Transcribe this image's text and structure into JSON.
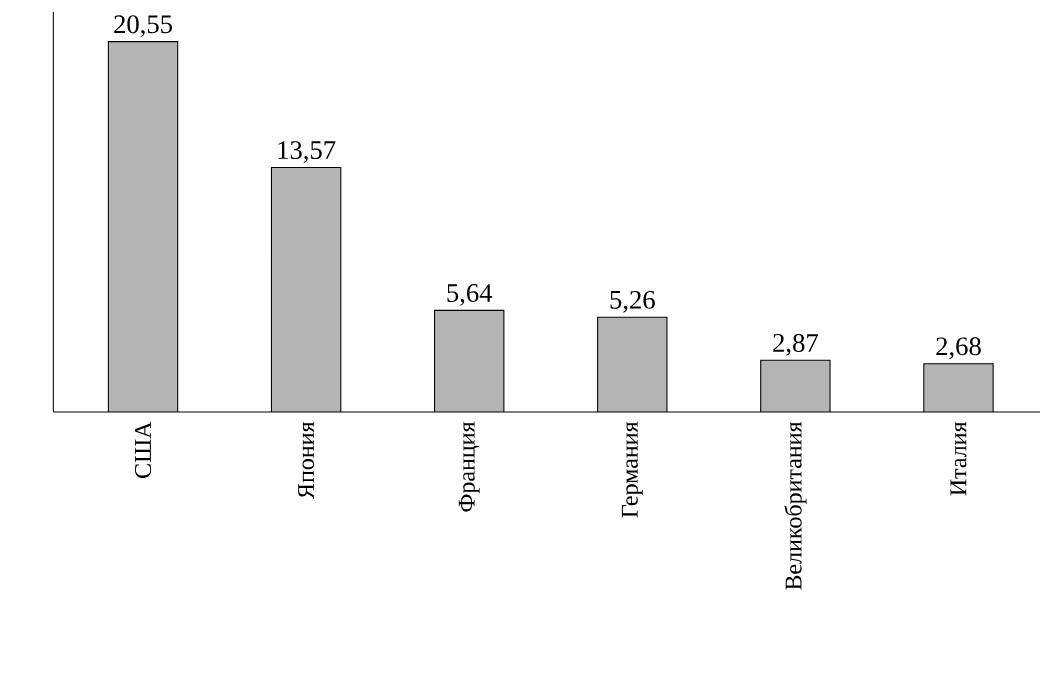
{
  "chart_data": {
    "type": "bar",
    "categories": [
      "США",
      "Япония",
      "Франция",
      "Германия",
      "Великобритания",
      "Италия"
    ],
    "values": [
      20.55,
      13.57,
      5.64,
      5.26,
      2.87,
      2.68
    ],
    "value_labels": [
      "20,55",
      "13,57",
      "5,64",
      "5,26",
      "2,87",
      "2,68"
    ],
    "color": "#b4b4b4"
  }
}
